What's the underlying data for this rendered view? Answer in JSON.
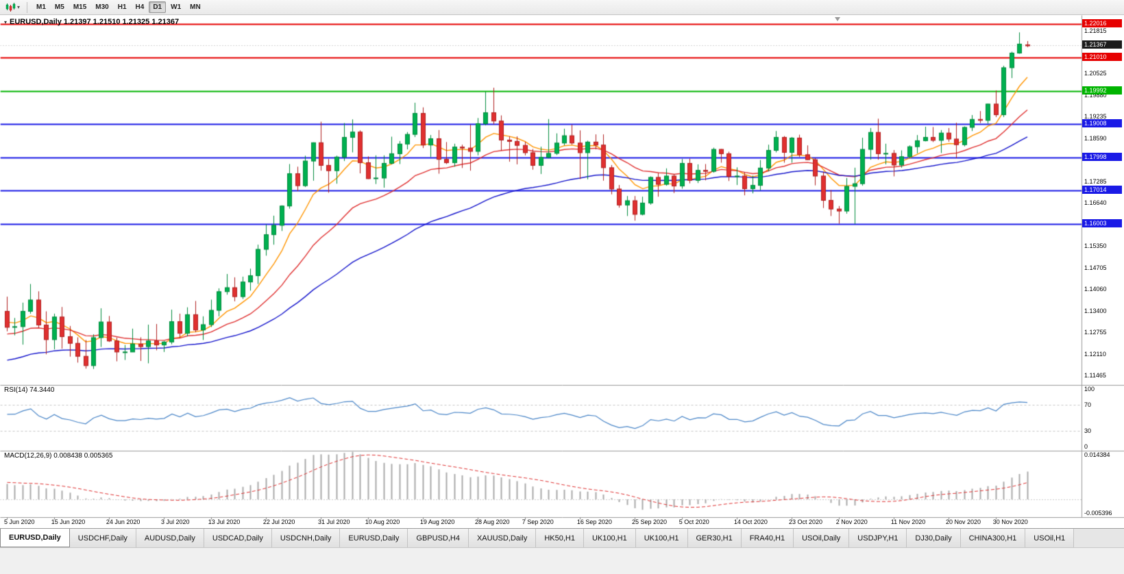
{
  "toolbar": {
    "timeframes": [
      "M1",
      "M5",
      "M15",
      "M30",
      "H1",
      "H4",
      "D1",
      "W1",
      "MN"
    ],
    "active": "D1"
  },
  "chart": {
    "title": "EURUSD,Daily 1.21397 1.21510 1.21325 1.21367",
    "symbol": "EURUSD",
    "period": "Daily",
    "ohlc": {
      "open": "1.21397",
      "high": "1.21510",
      "low": "1.21325",
      "close": "1.21367"
    }
  },
  "chart_data": {
    "type": "candlestick",
    "symbol": "EURUSD",
    "timeframe": "Daily",
    "price_axis": {
      "min": 1.1118,
      "max": 1.2228,
      "ticks": [
        "1.21815",
        "1.20525",
        "1.19880",
        "1.19235",
        "1.18590",
        "1.17285",
        "1.16640",
        "1.15350",
        "1.14705",
        "1.14060",
        "1.13400",
        "1.12755",
        "1.12110",
        "1.11465"
      ]
    },
    "bid_line": {
      "value": 1.21367,
      "label": "1.21367"
    },
    "hlines": [
      {
        "value": 1.22016,
        "label": "1.22016",
        "color": "#e60000"
      },
      {
        "value": 1.2101,
        "label": "1.21010",
        "color": "#e60000"
      },
      {
        "value": 1.19992,
        "label": "1.19992",
        "color": "#00b400"
      },
      {
        "value": 1.19008,
        "label": "1.19008",
        "color": "#1a1ae6"
      },
      {
        "value": 1.17998,
        "label": "1.17998",
        "color": "#1a1ae6"
      },
      {
        "value": 1.17014,
        "label": "1.17014",
        "color": "#1a1ae6"
      },
      {
        "value": 1.16003,
        "label": "1.16003",
        "color": "#1a1ae6"
      }
    ],
    "moving_averages": [
      {
        "name": "fast-ma",
        "period": 8,
        "color": "#ff9500"
      },
      {
        "name": "medium-ma",
        "period": 20,
        "color": "#e03030"
      },
      {
        "name": "slow-ma",
        "period": 45,
        "color": "#1414cc"
      }
    ],
    "colors": {
      "bull": "#00b050",
      "bull_border": "#008a3c",
      "bear": "#e03030",
      "bear_border": "#b02020"
    },
    "time_axis": [
      {
        "i": 0,
        "label": "5 Jun 2020"
      },
      {
        "i": 6,
        "label": "15 Jun 2020"
      },
      {
        "i": 13,
        "label": "24 Jun 2020"
      },
      {
        "i": 20,
        "label": "3 Jul 2020"
      },
      {
        "i": 26,
        "label": "13 Jul 2020"
      },
      {
        "i": 33,
        "label": "22 Jul 2020"
      },
      {
        "i": 40,
        "label": "31 Jul 2020"
      },
      {
        "i": 46,
        "label": "10 Aug 2020"
      },
      {
        "i": 53,
        "label": "19 Aug 2020"
      },
      {
        "i": 60,
        "label": "28 Aug 2020"
      },
      {
        "i": 66,
        "label": "7 Sep 2020"
      },
      {
        "i": 73,
        "label": "16 Sep 2020"
      },
      {
        "i": 80,
        "label": "25 Sep 2020"
      },
      {
        "i": 86,
        "label": "5 Oct 2020"
      },
      {
        "i": 93,
        "label": "14 Oct 2020"
      },
      {
        "i": 100,
        "label": "23 Oct 2020"
      },
      {
        "i": 106,
        "label": "2 Nov 2020"
      },
      {
        "i": 113,
        "label": "11 Nov 2020"
      },
      {
        "i": 120,
        "label": "20 Nov 2020"
      },
      {
        "i": 126,
        "label": "30 Nov 2020"
      }
    ],
    "candles": [
      [
        1.134,
        1.1384,
        1.128,
        1.1292
      ],
      [
        1.1292,
        1.132,
        1.1268,
        1.1294
      ],
      [
        1.1294,
        1.1366,
        1.124,
        1.134
      ],
      [
        1.134,
        1.1422,
        1.1333,
        1.1374
      ],
      [
        1.1374,
        1.14,
        1.129,
        1.1299
      ],
      [
        1.1299,
        1.134,
        1.1211,
        1.1255
      ],
      [
        1.1255,
        1.1333,
        1.1226,
        1.1323
      ],
      [
        1.1323,
        1.1353,
        1.1228,
        1.1264
      ],
      [
        1.1264,
        1.1296,
        1.1204,
        1.1244
      ],
      [
        1.1244,
        1.1262,
        1.1186,
        1.1205
      ],
      [
        1.1205,
        1.1254,
        1.1168,
        1.1177
      ],
      [
        1.1177,
        1.1271,
        1.1167,
        1.1261
      ],
      [
        1.1261,
        1.1349,
        1.1233,
        1.1308
      ],
      [
        1.1308,
        1.1326,
        1.1248,
        1.1251
      ],
      [
        1.1251,
        1.1261,
        1.119,
        1.1218
      ],
      [
        1.1218,
        1.1239,
        1.1194,
        1.1218
      ],
      [
        1.1218,
        1.1288,
        1.1218,
        1.1242
      ],
      [
        1.1242,
        1.1262,
        1.1191,
        1.1234
      ],
      [
        1.1234,
        1.13,
        1.1184,
        1.1251
      ],
      [
        1.1251,
        1.1302,
        1.1223,
        1.1239
      ],
      [
        1.1239,
        1.1251,
        1.1218,
        1.1248
      ],
      [
        1.1248,
        1.1345,
        1.1241,
        1.1309
      ],
      [
        1.1309,
        1.1333,
        1.1259,
        1.1274
      ],
      [
        1.1274,
        1.1352,
        1.1265,
        1.133
      ],
      [
        1.133,
        1.1371,
        1.1277,
        1.1284
      ],
      [
        1.1284,
        1.1325,
        1.1254,
        1.13
      ],
      [
        1.13,
        1.1375,
        1.1293,
        1.1343
      ],
      [
        1.1343,
        1.1409,
        1.1325,
        1.1399
      ],
      [
        1.1399,
        1.1452,
        1.139,
        1.1411
      ],
      [
        1.1411,
        1.1442,
        1.137,
        1.1384
      ],
      [
        1.1384,
        1.1444,
        1.1377,
        1.1428
      ],
      [
        1.1428,
        1.1468,
        1.1402,
        1.1447
      ],
      [
        1.1447,
        1.154,
        1.1422,
        1.1526
      ],
      [
        1.1526,
        1.1601,
        1.1507,
        1.157
      ],
      [
        1.157,
        1.1627,
        1.154,
        1.1598
      ],
      [
        1.1598,
        1.1658,
        1.1581,
        1.1656
      ],
      [
        1.1656,
        1.1782,
        1.1648,
        1.1753
      ],
      [
        1.1753,
        1.1774,
        1.1701,
        1.1717
      ],
      [
        1.1717,
        1.1807,
        1.1713,
        1.1791
      ],
      [
        1.1791,
        1.1847,
        1.1732,
        1.1846
      ],
      [
        1.1846,
        1.1909,
        1.1762,
        1.1778
      ],
      [
        1.1778,
        1.1797,
        1.1696,
        1.1762
      ],
      [
        1.1762,
        1.1807,
        1.1723,
        1.1803
      ],
      [
        1.1803,
        1.1905,
        1.1791,
        1.1862
      ],
      [
        1.1862,
        1.1916,
        1.1817,
        1.1878
      ],
      [
        1.1878,
        1.1883,
        1.1754,
        1.1786
      ],
      [
        1.1786,
        1.1805,
        1.1737,
        1.1738
      ],
      [
        1.1738,
        1.1808,
        1.1722,
        1.174
      ],
      [
        1.174,
        1.1808,
        1.1711,
        1.1784
      ],
      [
        1.1784,
        1.1864,
        1.1781,
        1.1813
      ],
      [
        1.1813,
        1.1851,
        1.1782,
        1.1842
      ],
      [
        1.1842,
        1.1878,
        1.1826,
        1.1871
      ],
      [
        1.1871,
        1.1966,
        1.1863,
        1.1934
      ],
      [
        1.1934,
        1.1952,
        1.183,
        1.1839
      ],
      [
        1.1839,
        1.1869,
        1.1803,
        1.1858
      ],
      [
        1.1858,
        1.1884,
        1.1753,
        1.1796
      ],
      [
        1.1796,
        1.1848,
        1.1782,
        1.1786
      ],
      [
        1.1786,
        1.1843,
        1.1774,
        1.1833
      ],
      [
        1.1833,
        1.184,
        1.177,
        1.183
      ],
      [
        1.183,
        1.19,
        1.1762,
        1.182
      ],
      [
        1.182,
        1.192,
        1.1808,
        1.1903
      ],
      [
        1.1903,
        1.1999,
        1.1898,
        1.1936
      ],
      [
        1.1936,
        1.2011,
        1.1901,
        1.1911
      ],
      [
        1.1911,
        1.1928,
        1.1822,
        1.1854
      ],
      [
        1.1854,
        1.1865,
        1.1789,
        1.185
      ],
      [
        1.185,
        1.1865,
        1.1781,
        1.1838
      ],
      [
        1.1838,
        1.1849,
        1.1808,
        1.1816
      ],
      [
        1.1816,
        1.1827,
        1.1765,
        1.1778
      ],
      [
        1.1778,
        1.1834,
        1.1752,
        1.1802
      ],
      [
        1.1802,
        1.1917,
        1.1799,
        1.1814
      ],
      [
        1.1814,
        1.1874,
        1.1809,
        1.1845
      ],
      [
        1.1845,
        1.1888,
        1.1838,
        1.1867
      ],
      [
        1.1867,
        1.19,
        1.184,
        1.1845
      ],
      [
        1.1845,
        1.1883,
        1.1737,
        1.1816
      ],
      [
        1.1816,
        1.1852,
        1.1736,
        1.1848
      ],
      [
        1.1848,
        1.1871,
        1.1826,
        1.1839
      ],
      [
        1.1839,
        1.1871,
        1.1732,
        1.1771
      ],
      [
        1.1771,
        1.1779,
        1.1691,
        1.1707
      ],
      [
        1.1707,
        1.1719,
        1.1651,
        1.1659
      ],
      [
        1.1659,
        1.1686,
        1.1626,
        1.1672
      ],
      [
        1.1672,
        1.1686,
        1.1612,
        1.1631
      ],
      [
        1.1631,
        1.1684,
        1.1628,
        1.1665
      ],
      [
        1.1665,
        1.1745,
        1.166,
        1.1742
      ],
      [
        1.1742,
        1.1755,
        1.1684,
        1.1721
      ],
      [
        1.1721,
        1.1769,
        1.1717,
        1.1746
      ],
      [
        1.1746,
        1.1752,
        1.1695,
        1.1716
      ],
      [
        1.1716,
        1.1797,
        1.1708,
        1.1784
      ],
      [
        1.1784,
        1.1798,
        1.1724,
        1.1733
      ],
      [
        1.1733,
        1.1781,
        1.1725,
        1.1763
      ],
      [
        1.1763,
        1.1782,
        1.1733,
        1.176
      ],
      [
        1.176,
        1.1831,
        1.1756,
        1.1826
      ],
      [
        1.1826,
        1.1827,
        1.1786,
        1.1813
      ],
      [
        1.1813,
        1.1819,
        1.1731,
        1.1745
      ],
      [
        1.1745,
        1.1772,
        1.1719,
        1.1746
      ],
      [
        1.1746,
        1.1758,
        1.1688,
        1.1708
      ],
      [
        1.1708,
        1.1747,
        1.1694,
        1.1718
      ],
      [
        1.1718,
        1.1794,
        1.1703,
        1.177
      ],
      [
        1.177,
        1.184,
        1.176,
        1.1823
      ],
      [
        1.1823,
        1.1881,
        1.1817,
        1.1862
      ],
      [
        1.1862,
        1.1866,
        1.1786,
        1.1817
      ],
      [
        1.1817,
        1.1863,
        1.1786,
        1.186
      ],
      [
        1.186,
        1.187,
        1.1803,
        1.181
      ],
      [
        1.181,
        1.1838,
        1.1794,
        1.1795
      ],
      [
        1.1795,
        1.18,
        1.1718,
        1.1746
      ],
      [
        1.1746,
        1.1759,
        1.165,
        1.1673
      ],
      [
        1.1673,
        1.1704,
        1.1626,
        1.1647
      ],
      [
        1.1647,
        1.1656,
        1.1603,
        1.1641
      ],
      [
        1.1641,
        1.174,
        1.1633,
        1.1715
      ],
      [
        1.1715,
        1.1771,
        1.1602,
        1.1723
      ],
      [
        1.1723,
        1.1861,
        1.1717,
        1.1826
      ],
      [
        1.1826,
        1.189,
        1.1795,
        1.1877
      ],
      [
        1.1877,
        1.1918,
        1.1795,
        1.1813
      ],
      [
        1.1813,
        1.1843,
        1.1781,
        1.1814
      ],
      [
        1.1814,
        1.1824,
        1.1745,
        1.1779
      ],
      [
        1.1779,
        1.1823,
        1.1771,
        1.1804
      ],
      [
        1.1804,
        1.1838,
        1.1799,
        1.1834
      ],
      [
        1.1834,
        1.1869,
        1.1814,
        1.1852
      ],
      [
        1.1852,
        1.1894,
        1.185,
        1.1862
      ],
      [
        1.1862,
        1.1893,
        1.1848,
        1.1853
      ],
      [
        1.1853,
        1.1884,
        1.1815,
        1.1875
      ],
      [
        1.1875,
        1.189,
        1.1849,
        1.1857
      ],
      [
        1.1857,
        1.1906,
        1.18,
        1.184
      ],
      [
        1.184,
        1.1895,
        1.1835,
        1.1892
      ],
      [
        1.1892,
        1.1929,
        1.1881,
        1.1916
      ],
      [
        1.1916,
        1.1941,
        1.1905,
        1.1913
      ],
      [
        1.1913,
        1.1963,
        1.1903,
        1.1962
      ],
      [
        1.1962,
        1.2003,
        1.1923,
        1.193
      ],
      [
        1.193,
        1.2077,
        1.1923,
        1.2071
      ],
      [
        1.2071,
        1.2119,
        1.204,
        1.2115
      ],
      [
        1.2115,
        1.2177,
        1.2113,
        1.2142
      ],
      [
        1.21397,
        1.2151,
        1.21325,
        1.21367
      ]
    ],
    "rsi": {
      "label": "RSI(14) 74.3440",
      "period": 14,
      "value": 74.344,
      "ticks": [
        "100",
        "70",
        "30",
        "0"
      ],
      "levels": [
        70,
        30
      ],
      "color": "#4a86c8",
      "range": [
        0,
        100
      ]
    },
    "macd": {
      "label": "MACD(12,26,9) 0.008438 0.005365",
      "fast": 12,
      "slow": 26,
      "signal": 9,
      "value": 0.008438,
      "signal_value": 0.005365,
      "ticks": [
        {
          "v": 0.014384,
          "label": "0.014384"
        },
        {
          "v": -0.005396,
          "label": "-0.005396"
        }
      ],
      "range": [
        -0.0054,
        0.0144
      ]
    }
  },
  "tabs": {
    "active_index": 0,
    "items": [
      "EURUSD,Daily",
      "USDCHF,Daily",
      "AUDUSD,Daily",
      "USDCAD,Daily",
      "USDCNH,Daily",
      "EURUSD,Daily",
      "GBPUSD,H4",
      "XAUUSD,Daily",
      "HK50,H1",
      "UK100,H1",
      "UK100,H1",
      "GER30,H1",
      "FRA40,H1",
      "USOil,Daily",
      "USDJPY,H1",
      "DJ30,Daily",
      "CHINA300,H1",
      "USOil,H1"
    ]
  }
}
